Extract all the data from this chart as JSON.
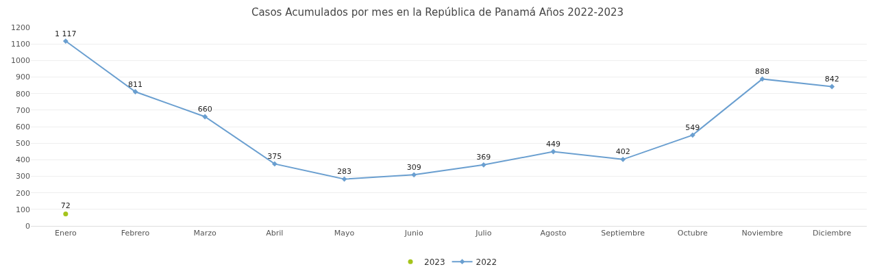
{
  "chart_data": {
    "type": "line",
    "title": "Casos Acumulados por mes en la República de Panamá Años 2022-2023",
    "categories": [
      "Enero",
      "Febrero",
      "Marzo",
      "Abril",
      "Mayo",
      "Junio",
      "Julio",
      "Agosto",
      "Septiembre",
      "Octubre",
      "Noviembre",
      "Diciembre"
    ],
    "series": [
      {
        "name": "2023",
        "color": "#a5c41c",
        "type": "scatter",
        "marker": "circle",
        "values": [
          72,
          null,
          null,
          null,
          null,
          null,
          null,
          null,
          null,
          null,
          null,
          null
        ],
        "value_labels": [
          "72",
          null,
          null,
          null,
          null,
          null,
          null,
          null,
          null,
          null,
          null,
          null
        ]
      },
      {
        "name": "2022",
        "color": "#6a9fd0",
        "marker": "diamond",
        "values": [
          1117,
          811,
          660,
          375,
          283,
          309,
          369,
          449,
          402,
          549,
          888,
          842
        ],
        "value_labels": [
          "1 117",
          "811",
          "660",
          "375",
          "283",
          "309",
          "369",
          "449",
          "402",
          "549",
          "888",
          "842"
        ]
      }
    ],
    "ylim": [
      0,
      1200
    ],
    "yticks": [
      0,
      100,
      200,
      300,
      400,
      500,
      600,
      700,
      800,
      900,
      1000,
      1100,
      1200
    ],
    "grid": "y",
    "legend": "bottom"
  }
}
